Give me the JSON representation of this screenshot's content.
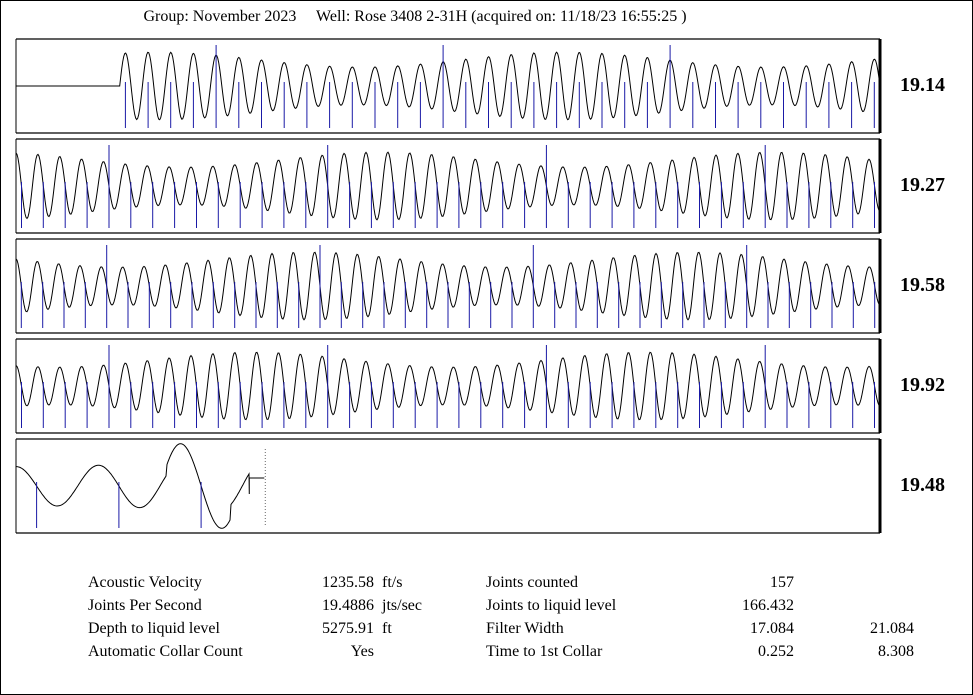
{
  "header": {
    "group_label": "Group: November 2023",
    "well_label": "Well: Rose 3408 2-31H (acquired on: 11/18/23 16:55:25 )"
  },
  "chart_data": {
    "type": "line",
    "title": "Group: November 2023     Well: Rose 3408 2-31H (acquired on: 11/18/23 16:55:25 )",
    "panels": [
      {
        "value": "19.14",
        "cycles": 33.5,
        "lead": 0.12,
        "end": 1.0
      },
      {
        "value": "19.27",
        "cycles": 39.5,
        "lead": 0.0,
        "end": 1.0
      },
      {
        "value": "19.58",
        "cycles": 40.5,
        "lead": 0.0,
        "end": 1.0
      },
      {
        "value": "19.92",
        "cycles": 39.5,
        "lead": 0.0,
        "end": 1.0
      },
      {
        "value": "19.48",
        "cycles": 10.5,
        "lead": 0.0,
        "end": 0.27
      }
    ]
  },
  "stats": {
    "left": [
      {
        "label": "Acoustic Velocity",
        "value": "1235.58",
        "unit": "ft/s"
      },
      {
        "label": "Joints Per Second",
        "value": "19.4886",
        "unit": "jts/sec"
      },
      {
        "label": "Depth to liquid level",
        "value": "5275.91",
        "unit": "ft"
      },
      {
        "label": "Automatic Collar Count",
        "value": "Yes",
        "unit": ""
      }
    ],
    "right": [
      {
        "label": "Joints counted",
        "value": "157",
        "extra": ""
      },
      {
        "label": "Joints to liquid level",
        "value": "166.432",
        "extra": ""
      },
      {
        "label": "Filter Width",
        "value": "17.084",
        "extra": "21.084"
      },
      {
        "label": "Time to 1st Collar",
        "value": "0.252",
        "extra": "8.308"
      }
    ]
  }
}
